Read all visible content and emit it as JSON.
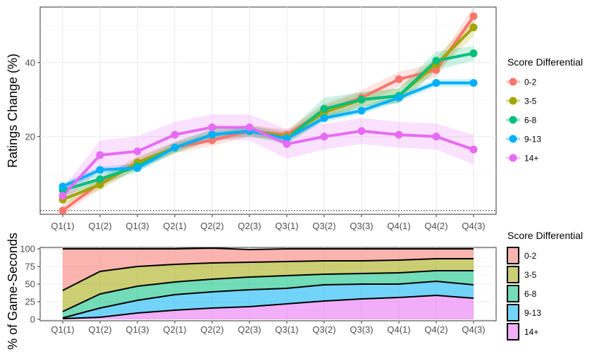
{
  "chart_data": [
    {
      "type": "line",
      "ylabel": "Ratings Change (%)",
      "categories": [
        "Q1(1)",
        "Q1(2)",
        "Q1(3)",
        "Q2(1)",
        "Q2(2)",
        "Q2(3)",
        "Q3(1)",
        "Q3(2)",
        "Q3(3)",
        "Q4(1)",
        "Q4(2)",
        "Q4(3)"
      ],
      "y_ticks": [
        20,
        40
      ],
      "ylim": [
        -1,
        55
      ],
      "reference_line": 0,
      "grid": true,
      "legend_title": "Score Differential",
      "legend_position": "right",
      "series": [
        {
          "name": "0-2",
          "color": "#F8766D",
          "values": [
            0,
            7.5,
            13,
            17,
            19,
            21.5,
            20.5,
            27,
            30.5,
            35.5,
            38,
            52.5
          ],
          "band": [
            1.5,
            1.5,
            1.5,
            1.5,
            1.5,
            1.5,
            1.5,
            2,
            2,
            2,
            2,
            2.5
          ]
        },
        {
          "name": "3-5",
          "color": "#A3A500",
          "values": [
            3,
            7,
            13,
            17,
            20.5,
            21.5,
            20,
            26.5,
            30,
            31,
            39.5,
            49.5
          ],
          "band": [
            1.5,
            1.5,
            1.5,
            1.5,
            1.5,
            1.5,
            1.5,
            2,
            2,
            2,
            2,
            2.5
          ]
        },
        {
          "name": "6-8",
          "color": "#00BF7D",
          "values": [
            5.5,
            8.5,
            12,
            17,
            20.5,
            21.5,
            19.5,
            27.5,
            30,
            31,
            40.5,
            42.5
          ],
          "band": [
            1.5,
            1.5,
            1.5,
            1.5,
            1.5,
            1.5,
            1.5,
            3,
            2,
            2,
            2.5,
            2
          ]
        },
        {
          "name": "9-13",
          "color": "#00B0F6",
          "values": [
            6.5,
            11,
            11.5,
            17,
            20.5,
            21.5,
            19.5,
            25,
            27,
            30.5,
            34.5,
            34.5
          ],
          "band": [
            1,
            1,
            1,
            1,
            1,
            1,
            1,
            1,
            1,
            1,
            1,
            1
          ]
        },
        {
          "name": "14+",
          "color": "#E76BF3",
          "values": [
            4,
            15,
            16,
            20.5,
            22.5,
            22.5,
            18,
            20,
            21.5,
            20.5,
            20,
            16.5
          ],
          "band": [
            2,
            4,
            4,
            3.5,
            3.5,
            3.5,
            4,
            3.5,
            3.5,
            3.5,
            3.5,
            4
          ]
        }
      ]
    },
    {
      "type": "area",
      "stacked": true,
      "ylabel": "% of Game-Seconds",
      "categories": [
        "Q1(1)",
        "Q1(2)",
        "Q1(3)",
        "Q2(1)",
        "Q2(2)",
        "Q2(3)",
        "Q3(1)",
        "Q3(2)",
        "Q3(3)",
        "Q4(1)",
        "Q4(2)",
        "Q4(3)"
      ],
      "y_ticks": [
        0,
        25,
        50,
        75,
        100
      ],
      "ylim": [
        -2,
        102
      ],
      "grid": true,
      "legend_title": "Score Differential",
      "legend_position": "right",
      "series": [
        {
          "name": "0-2",
          "color": "#F8766D",
          "values": [
            59,
            32,
            25,
            22,
            21,
            18,
            18,
            17,
            17,
            16,
            14,
            14
          ]
        },
        {
          "name": "3-5",
          "color": "#A3A500",
          "values": [
            30,
            32,
            28,
            25,
            23,
            21,
            20,
            19,
            18,
            18,
            17,
            17
          ]
        },
        {
          "name": "6-8",
          "color": "#00BF7D",
          "values": [
            9,
            20,
            20,
            18,
            18,
            18,
            18,
            15,
            15,
            16,
            15,
            20
          ]
        },
        {
          "name": "9-13",
          "color": "#00B0F6",
          "values": [
            1,
            13,
            18,
            22,
            23,
            24,
            22,
            23,
            21,
            19,
            20,
            19
          ]
        },
        {
          "name": "14+",
          "color": "#E76BF3",
          "values": [
            1,
            3,
            9,
            13,
            16,
            18,
            22,
            26,
            29,
            31,
            34,
            30
          ]
        }
      ]
    }
  ]
}
